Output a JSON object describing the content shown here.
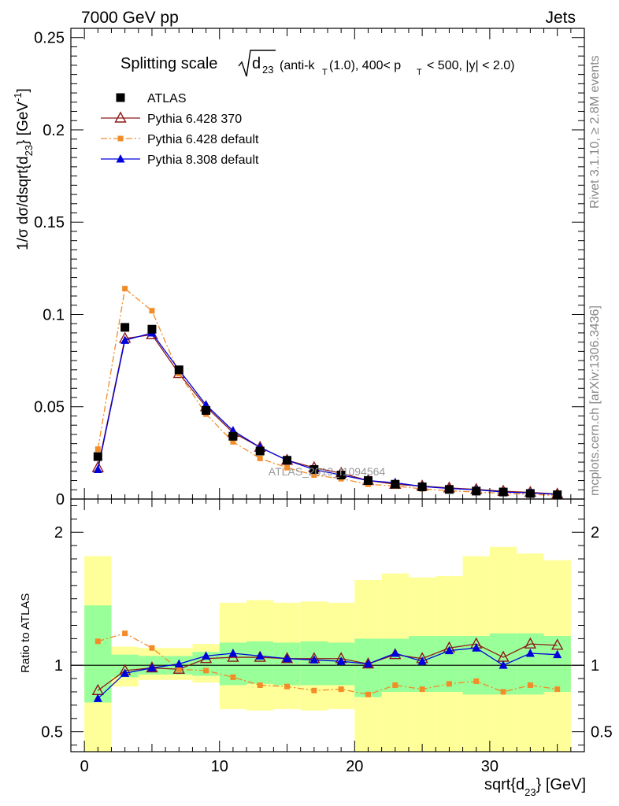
{
  "header": {
    "left": "7000 GeV pp",
    "right": "Jets"
  },
  "side": {
    "rivet": "Rivet 3.1.10, ≥ 2.8M events",
    "mcplots": "mcplots.cern.ch [arXiv:1306.3436]"
  },
  "chart_data": [
    {
      "type": "scatter",
      "title": "Splitting scale √d23 (anti-kT(1.0), 400< pT < 500, |y| < 2.0)",
      "title_parts": {
        "a": "Splitting scale",
        "b": "d",
        "b_sub": "23",
        "c": "(anti-k",
        "c_sub": "T",
        "d": "(1.0), 400< p",
        "d_sub": "T",
        "e": "< 500, |y| < 2.0)"
      },
      "xlabel": "sqrt{d23} [GeV]",
      "ylabel": "1/σ dσ/dsqrt{d23} [GeV-1]",
      "ylabel_parts": {
        "a": "1/σ dσ/dsqrt{d",
        "sub": "23",
        "b": "} [GeV",
        "sup": "-1",
        "c": "]"
      },
      "xlabel_parts": {
        "a": "sqrt{d",
        "sub": "23",
        "b": "} [GeV]"
      },
      "xlim": [
        -1,
        37
      ],
      "ylim": [
        0,
        0.255
      ],
      "yticks": [
        "0",
        "0.05",
        "0.1",
        "0.15",
        "0.2",
        "0.25"
      ],
      "watermark": "ATLAS_2013_I1094564",
      "legend_position": "top-left",
      "x": [
        1,
        3,
        5,
        7,
        9,
        11,
        13,
        15,
        17,
        19,
        21,
        23,
        25,
        27,
        29,
        31,
        33,
        35
      ],
      "series": [
        {
          "name": "ATLAS",
          "color": "#000000",
          "values": [
            0.023,
            0.093,
            0.092,
            0.07,
            0.048,
            0.034,
            0.026,
            0.021,
            0.016,
            0.013,
            0.01,
            0.008,
            0.0066,
            0.0052,
            0.0043,
            0.0038,
            0.003,
            0.0023
          ]
        },
        {
          "name": "Pythia 6.428 370",
          "color": "#8b1a1a",
          "values": [
            0.017,
            0.087,
            0.089,
            0.068,
            0.05,
            0.036,
            0.028,
            0.021,
            0.017,
            0.014,
            0.01,
            0.008,
            0.007,
            0.006,
            0.0052,
            0.0042,
            0.0036,
            0.0027
          ]
        },
        {
          "name": "Pythia 6.428 default",
          "color": "#f28c28",
          "values": [
            0.027,
            0.114,
            0.102,
            0.068,
            0.046,
            0.031,
            0.022,
            0.017,
            0.013,
            0.011,
            0.008,
            0.007,
            0.0055,
            0.0045,
            0.0038,
            0.0031,
            0.0026,
            0.0019
          ]
        },
        {
          "name": "Pythia 8.308 default",
          "color": "#0000dd",
          "values": [
            0.016,
            0.086,
            0.09,
            0.07,
            0.051,
            0.037,
            0.028,
            0.021,
            0.016,
            0.013,
            0.01,
            0.0088,
            0.0068,
            0.0057,
            0.005,
            0.0038,
            0.0033,
            0.0025
          ]
        }
      ]
    },
    {
      "type": "scatter",
      "ylabel": "Ratio to ATLAS",
      "xlabel": "sqrt{d23} [GeV]",
      "xlim": [
        -1,
        37
      ],
      "ylim": [
        0.35,
        2.25
      ],
      "yticks": [
        "0.5",
        "1",
        "2"
      ],
      "xticks": [
        "0",
        "10",
        "20",
        "30"
      ],
      "x": [
        1,
        3,
        5,
        7,
        9,
        11,
        13,
        15,
        17,
        19,
        21,
        23,
        25,
        27,
        29,
        31,
        33,
        35
      ],
      "bin_edges": [
        0,
        2,
        4,
        6,
        8,
        10,
        12,
        14,
        16,
        18,
        20,
        22,
        24,
        26,
        28,
        30,
        32,
        34,
        36
      ],
      "bands": {
        "stat_color": "#99ff99",
        "total_color": "#ffff99",
        "stat_lo": [
          0.72,
          0.91,
          0.93,
          0.93,
          0.92,
          0.85,
          0.86,
          0.85,
          0.85,
          0.85,
          0.76,
          0.8,
          0.8,
          0.8,
          0.78,
          0.78,
          0.78,
          0.8
        ],
        "stat_hi": [
          1.45,
          1.08,
          1.07,
          1.07,
          1.1,
          1.17,
          1.18,
          1.17,
          1.18,
          1.17,
          1.2,
          1.2,
          1.22,
          1.22,
          1.22,
          1.24,
          1.24,
          1.22
        ],
        "total_lo": [
          0.2,
          0.84,
          0.89,
          0.89,
          0.87,
          0.67,
          0.66,
          0.67,
          0.66,
          0.67,
          0.2,
          0.2,
          0.2,
          0.2,
          0.2,
          0.2,
          0.2,
          0.2
        ],
        "total_hi": [
          1.82,
          1.14,
          1.13,
          1.13,
          1.16,
          1.47,
          1.49,
          1.47,
          1.48,
          1.47,
          1.64,
          1.69,
          1.66,
          1.67,
          1.82,
          1.89,
          1.84,
          1.79
        ]
      },
      "series": [
        {
          "name": "Pythia 6.428 370",
          "color": "#8b1a1a",
          "values": [
            0.81,
            0.96,
            0.98,
            0.97,
            1.05,
            1.06,
            1.06,
            1.05,
            1.05,
            1.05,
            1.01,
            1.08,
            1.05,
            1.13,
            1.16,
            1.06,
            1.16,
            1.15
          ]
        },
        {
          "name": "Pythia 6.428 default",
          "color": "#f28c28",
          "values": [
            1.18,
            1.24,
            1.13,
            0.97,
            0.96,
            0.91,
            0.85,
            0.84,
            0.81,
            0.82,
            0.78,
            0.85,
            0.82,
            0.86,
            0.88,
            0.8,
            0.85,
            0.82
          ]
        },
        {
          "name": "Pythia 8.308 default",
          "color": "#0000dd",
          "values": [
            0.75,
            0.94,
            0.98,
            1.01,
            1.07,
            1.09,
            1.07,
            1.05,
            1.04,
            1.03,
            1.01,
            1.09,
            1.03,
            1.11,
            1.13,
            1.0,
            1.09,
            1.08
          ]
        }
      ]
    }
  ]
}
